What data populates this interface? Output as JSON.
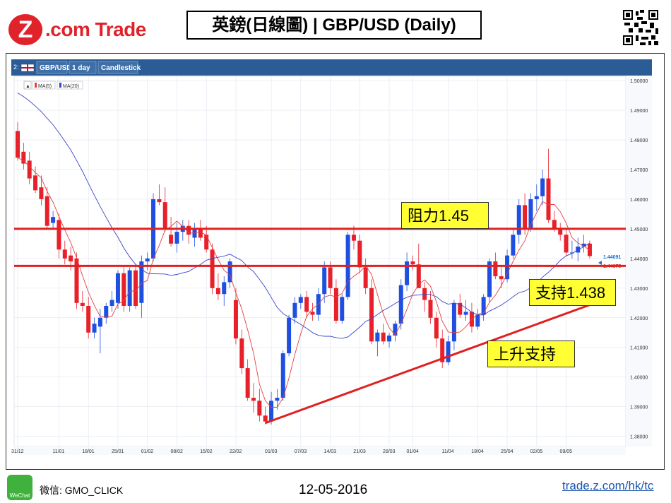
{
  "header": {
    "logo_z": "Z",
    "logo_text": ".com Trade",
    "title": "英鎊(日線圖) | GBP/USD  (Daily)"
  },
  "toolbar": {
    "tab_index": "2:",
    "symbol": "GBP/USD",
    "interval": "1 day",
    "chart_style": "Candlestick"
  },
  "legend": {
    "ma5": "MA(5)",
    "ma20": "MA(20)"
  },
  "price_tags": {
    "upper": "1.44091",
    "lower": "1.44075"
  },
  "callouts": {
    "resistance": "阻力1.45",
    "support": "支持1.438",
    "trend": "上升支持"
  },
  "footer": {
    "wechat_label": "WeChat",
    "wechat_id": "微信: GMO_CLICK",
    "date": "12-05-2016",
    "link": "trade.z.com/hk/tc"
  },
  "colors": {
    "up": "#1e4fe0",
    "down": "#e8202a",
    "ma5": "#e34040",
    "ma20": "#3a44c9",
    "level_line": "#e02020",
    "toolbar": "#2b5c95",
    "grid": "#e3e8f1"
  },
  "chart_data": {
    "type": "candlestick",
    "ylim": [
      1.378,
      1.5005
    ],
    "y_ticks": [
      "1.50000",
      "1.49000",
      "1.48000",
      "1.47000",
      "1.46000",
      "1.45000",
      "1.44000",
      "1.43000",
      "1.42000",
      "1.41000",
      "1.40000",
      "1.39000",
      "1.38000"
    ],
    "x_ticks": [
      "31/12",
      "11/01",
      "18/01",
      "25/01",
      "01/02",
      "08/02",
      "15/02",
      "22/02",
      "01/03",
      "07/03",
      "14/03",
      "21/03",
      "28/03",
      "01/04",
      "11/04",
      "18/04",
      "25/04",
      "02/05",
      "09/05"
    ],
    "x_tick_index": [
      0,
      7,
      12,
      17,
      22,
      27,
      32,
      37,
      43,
      48,
      53,
      58,
      63,
      67,
      73,
      78,
      83,
      88,
      93
    ],
    "horizontal_levels": [
      1.45,
      1.4375
    ],
    "trendline": {
      "from": {
        "index": 42,
        "price": 1.3845
      },
      "to": {
        "index": 100,
        "price": 1.4265
      }
    },
    "candles": [
      {
        "o": 1.483,
        "h": 1.486,
        "l": 1.473,
        "c": 1.474
      },
      {
        "o": 1.476,
        "h": 1.479,
        "l": 1.47,
        "c": 1.472
      },
      {
        "o": 1.473,
        "h": 1.476,
        "l": 1.465,
        "c": 1.467
      },
      {
        "o": 1.468,
        "h": 1.471,
        "l": 1.462,
        "c": 1.463
      },
      {
        "o": 1.464,
        "h": 1.468,
        "l": 1.458,
        "c": 1.46
      },
      {
        "o": 1.461,
        "h": 1.464,
        "l": 1.45,
        "c": 1.451
      },
      {
        "o": 1.452,
        "h": 1.456,
        "l": 1.45,
        "c": 1.454
      },
      {
        "o": 1.453,
        "h": 1.455,
        "l": 1.44,
        "c": 1.443
      },
      {
        "o": 1.443,
        "h": 1.446,
        "l": 1.438,
        "c": 1.44
      },
      {
        "o": 1.441,
        "h": 1.444,
        "l": 1.436,
        "c": 1.439
      },
      {
        "o": 1.44,
        "h": 1.442,
        "l": 1.423,
        "c": 1.425
      },
      {
        "o": 1.425,
        "h": 1.429,
        "l": 1.422,
        "c": 1.424
      },
      {
        "o": 1.424,
        "h": 1.427,
        "l": 1.413,
        "c": 1.415
      },
      {
        "o": 1.415,
        "h": 1.42,
        "l": 1.413,
        "c": 1.418
      },
      {
        "o": 1.417,
        "h": 1.423,
        "l": 1.408,
        "c": 1.42
      },
      {
        "o": 1.42,
        "h": 1.425,
        "l": 1.418,
        "c": 1.424
      },
      {
        "o": 1.424,
        "h": 1.429,
        "l": 1.422,
        "c": 1.426
      },
      {
        "o": 1.425,
        "h": 1.436,
        "l": 1.423,
        "c": 1.435
      },
      {
        "o": 1.435,
        "h": 1.437,
        "l": 1.422,
        "c": 1.424
      },
      {
        "o": 1.424,
        "h": 1.437,
        "l": 1.422,
        "c": 1.436
      },
      {
        "o": 1.436,
        "h": 1.438,
        "l": 1.423,
        "c": 1.424
      },
      {
        "o": 1.425,
        "h": 1.441,
        "l": 1.42,
        "c": 1.439
      },
      {
        "o": 1.439,
        "h": 1.442,
        "l": 1.436,
        "c": 1.44
      },
      {
        "o": 1.44,
        "h": 1.462,
        "l": 1.439,
        "c": 1.46
      },
      {
        "o": 1.46,
        "h": 1.465,
        "l": 1.458,
        "c": 1.459
      },
      {
        "o": 1.459,
        "h": 1.464,
        "l": 1.449,
        "c": 1.45
      },
      {
        "o": 1.448,
        "h": 1.454,
        "l": 1.444,
        "c": 1.445
      },
      {
        "o": 1.445,
        "h": 1.452,
        "l": 1.442,
        "c": 1.449
      },
      {
        "o": 1.449,
        "h": 1.453,
        "l": 1.446,
        "c": 1.451
      },
      {
        "o": 1.451,
        "h": 1.453,
        "l": 1.445,
        "c": 1.448
      },
      {
        "o": 1.447,
        "h": 1.452,
        "l": 1.444,
        "c": 1.45
      },
      {
        "o": 1.45,
        "h": 1.453,
        "l": 1.446,
        "c": 1.447
      },
      {
        "o": 1.448,
        "h": 1.451,
        "l": 1.442,
        "c": 1.443
      },
      {
        "o": 1.443,
        "h": 1.445,
        "l": 1.428,
        "c": 1.43
      },
      {
        "o": 1.43,
        "h": 1.435,
        "l": 1.426,
        "c": 1.428
      },
      {
        "o": 1.428,
        "h": 1.434,
        "l": 1.424,
        "c": 1.432
      },
      {
        "o": 1.432,
        "h": 1.44,
        "l": 1.43,
        "c": 1.439
      },
      {
        "o": 1.426,
        "h": 1.43,
        "l": 1.411,
        "c": 1.413
      },
      {
        "o": 1.413,
        "h": 1.416,
        "l": 1.401,
        "c": 1.403
      },
      {
        "o": 1.403,
        "h": 1.406,
        "l": 1.392,
        "c": 1.393
      },
      {
        "o": 1.393,
        "h": 1.398,
        "l": 1.388,
        "c": 1.392
      },
      {
        "o": 1.392,
        "h": 1.396,
        "l": 1.385,
        "c": 1.387
      },
      {
        "o": 1.387,
        "h": 1.39,
        "l": 1.384,
        "c": 1.385
      },
      {
        "o": 1.385,
        "h": 1.395,
        "l": 1.384,
        "c": 1.392
      },
      {
        "o": 1.392,
        "h": 1.396,
        "l": 1.389,
        "c": 1.393
      },
      {
        "o": 1.393,
        "h": 1.409,
        "l": 1.392,
        "c": 1.408
      },
      {
        "o": 1.408,
        "h": 1.421,
        "l": 1.407,
        "c": 1.42
      },
      {
        "o": 1.42,
        "h": 1.427,
        "l": 1.418,
        "c": 1.425
      },
      {
        "o": 1.425,
        "h": 1.428,
        "l": 1.423,
        "c": 1.427
      },
      {
        "o": 1.427,
        "h": 1.429,
        "l": 1.42,
        "c": 1.422
      },
      {
        "o": 1.422,
        "h": 1.425,
        "l": 1.419,
        "c": 1.421
      },
      {
        "o": 1.421,
        "h": 1.43,
        "l": 1.419,
        "c": 1.428
      },
      {
        "o": 1.428,
        "h": 1.439,
        "l": 1.425,
        "c": 1.437
      },
      {
        "o": 1.437,
        "h": 1.439,
        "l": 1.428,
        "c": 1.43
      },
      {
        "o": 1.43,
        "h": 1.433,
        "l": 1.418,
        "c": 1.419
      },
      {
        "o": 1.419,
        "h": 1.428,
        "l": 1.418,
        "c": 1.427
      },
      {
        "o": 1.427,
        "h": 1.449,
        "l": 1.426,
        "c": 1.448
      },
      {
        "o": 1.448,
        "h": 1.451,
        "l": 1.443,
        "c": 1.446
      },
      {
        "o": 1.446,
        "h": 1.448,
        "l": 1.435,
        "c": 1.437
      },
      {
        "o": 1.437,
        "h": 1.44,
        "l": 1.428,
        "c": 1.43
      },
      {
        "o": 1.43,
        "h": 1.433,
        "l": 1.411,
        "c": 1.412
      },
      {
        "o": 1.412,
        "h": 1.416,
        "l": 1.407,
        "c": 1.415
      },
      {
        "o": 1.415,
        "h": 1.418,
        "l": 1.411,
        "c": 1.412
      },
      {
        "o": 1.412,
        "h": 1.415,
        "l": 1.41,
        "c": 1.414
      },
      {
        "o": 1.414,
        "h": 1.419,
        "l": 1.412,
        "c": 1.418
      },
      {
        "o": 1.418,
        "h": 1.433,
        "l": 1.416,
        "c": 1.431
      },
      {
        "o": 1.431,
        "h": 1.442,
        "l": 1.429,
        "c": 1.439
      },
      {
        "o": 1.439,
        "h": 1.441,
        "l": 1.436,
        "c": 1.438
      },
      {
        "o": 1.438,
        "h": 1.445,
        "l": 1.43,
        "c": 1.43
      },
      {
        "o": 1.43,
        "h": 1.432,
        "l": 1.422,
        "c": 1.426
      },
      {
        "o": 1.426,
        "h": 1.429,
        "l": 1.418,
        "c": 1.42
      },
      {
        "o": 1.42,
        "h": 1.422,
        "l": 1.41,
        "c": 1.413
      },
      {
        "o": 1.413,
        "h": 1.416,
        "l": 1.403,
        "c": 1.405
      },
      {
        "o": 1.405,
        "h": 1.414,
        "l": 1.404,
        "c": 1.412
      },
      {
        "o": 1.412,
        "h": 1.426,
        "l": 1.409,
        "c": 1.425
      },
      {
        "o": 1.425,
        "h": 1.428,
        "l": 1.42,
        "c": 1.421
      },
      {
        "o": 1.421,
        "h": 1.426,
        "l": 1.419,
        "c": 1.422
      },
      {
        "o": 1.422,
        "h": 1.425,
        "l": 1.415,
        "c": 1.417
      },
      {
        "o": 1.417,
        "h": 1.423,
        "l": 1.416,
        "c": 1.421
      },
      {
        "o": 1.421,
        "h": 1.428,
        "l": 1.419,
        "c": 1.427
      },
      {
        "o": 1.427,
        "h": 1.44,
        "l": 1.425,
        "c": 1.439
      },
      {
        "o": 1.439,
        "h": 1.442,
        "l": 1.433,
        "c": 1.434
      },
      {
        "o": 1.434,
        "h": 1.437,
        "l": 1.43,
        "c": 1.433
      },
      {
        "o": 1.433,
        "h": 1.443,
        "l": 1.432,
        "c": 1.441
      },
      {
        "o": 1.441,
        "h": 1.45,
        "l": 1.44,
        "c": 1.448
      },
      {
        "o": 1.448,
        "h": 1.46,
        "l": 1.445,
        "c": 1.458
      },
      {
        "o": 1.458,
        "h": 1.462,
        "l": 1.448,
        "c": 1.45
      },
      {
        "o": 1.45,
        "h": 1.462,
        "l": 1.449,
        "c": 1.46
      },
      {
        "o": 1.46,
        "h": 1.465,
        "l": 1.456,
        "c": 1.461
      },
      {
        "o": 1.461,
        "h": 1.47,
        "l": 1.458,
        "c": 1.467
      },
      {
        "o": 1.467,
        "h": 1.477,
        "l": 1.452,
        "c": 1.453
      },
      {
        "o": 1.453,
        "h": 1.456,
        "l": 1.449,
        "c": 1.45
      },
      {
        "o": 1.45,
        "h": 1.452,
        "l": 1.446,
        "c": 1.448
      },
      {
        "o": 1.448,
        "h": 1.45,
        "l": 1.441,
        "c": 1.442
      },
      {
        "o": 1.442,
        "h": 1.446,
        "l": 1.44,
        "c": 1.442
      },
      {
        "o": 1.442,
        "h": 1.447,
        "l": 1.439,
        "c": 1.444
      },
      {
        "o": 1.444,
        "h": 1.448,
        "l": 1.442,
        "c": 1.445
      },
      {
        "o": 1.445,
        "h": 1.446,
        "l": 1.44,
        "c": 1.4408
      }
    ],
    "ma20_start": 1.497
  }
}
